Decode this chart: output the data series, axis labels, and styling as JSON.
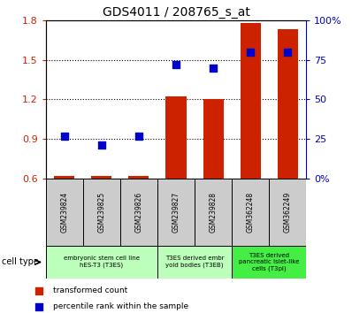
{
  "title": "GDS4011 / 208765_s_at",
  "samples": [
    "GSM239824",
    "GSM239825",
    "GSM239826",
    "GSM239827",
    "GSM239828",
    "GSM362248",
    "GSM362249"
  ],
  "transformed_counts": [
    0.62,
    0.62,
    0.62,
    1.22,
    1.2,
    1.78,
    1.73
  ],
  "percentile_ranks": [
    27,
    21,
    27,
    72,
    70,
    80,
    80
  ],
  "ylim_left": [
    0.6,
    1.8
  ],
  "ylim_right": [
    0,
    100
  ],
  "yticks_left": [
    0.6,
    0.9,
    1.2,
    1.5,
    1.8
  ],
  "yticks_right": [
    0,
    25,
    50,
    75,
    100
  ],
  "hlines": [
    0.9,
    1.2,
    1.5
  ],
  "bar_color": "#cc2200",
  "dot_color": "#0000cc",
  "bar_bottom": 0.6,
  "bar_width": 0.55,
  "dot_size": 30,
  "tick_label_color_left": "#cc2200",
  "tick_label_color_right": "#0000cc",
  "sample_box_color": "#cccccc",
  "group_data": [
    {
      "start": 0,
      "end": 2,
      "label": "embryonic stem cell line\nhES-T3 (T3ES)",
      "color": "#bbffbb"
    },
    {
      "start": 3,
      "end": 4,
      "label": "T3ES derived embr\nyoid bodies (T3EB)",
      "color": "#bbffbb"
    },
    {
      "start": 5,
      "end": 6,
      "label": "T3ES derived\npancreatic islet-like\ncells (T3pi)",
      "color": "#44ee44"
    }
  ],
  "legend_items": [
    {
      "label": "transformed count",
      "color": "#cc2200"
    },
    {
      "label": "percentile rank within the sample",
      "color": "#0000cc"
    }
  ],
  "cell_type_label": "cell type"
}
